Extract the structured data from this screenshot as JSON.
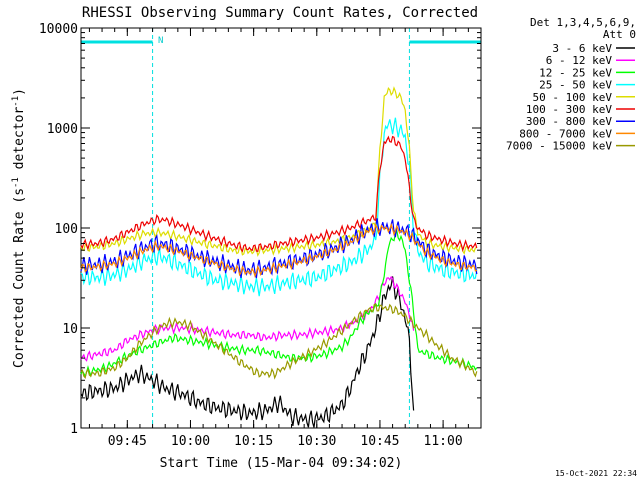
{
  "chart_data": {
    "type": "line",
    "title": "RHESSI Observing Summary Count Rates, Corrected",
    "xlabel": "Start Time (15-Mar-04 09:34:02)",
    "ylabel_main": "Corrected Count Rate (s",
    "ylabel_sup1": "-1",
    "ylabel_mid": " detector",
    "ylabel_sup2": "-1",
    "ylabel_end": ")",
    "y_scale": "log",
    "ylim": [
      1,
      10000
    ],
    "xlim_minutes": [
      0,
      95
    ],
    "x_tick_labels": [
      "09:45",
      "10:00",
      "10:15",
      "10:30",
      "10:45",
      "11:00"
    ],
    "x_tick_minutes": [
      11,
      26,
      41,
      56,
      71,
      86
    ],
    "y_tick_labels": [
      "1",
      "10",
      "100",
      "1000",
      "10000"
    ],
    "y_tick_values": [
      1,
      10,
      100,
      1000,
      10000
    ],
    "legend_header_1": "Det 1,3,4,5,6,9,",
    "legend_header_2": "Att 0",
    "legend_position": "top-right",
    "attenuator_mark": "N",
    "timestamp": "15-Oct-2021 22:34",
    "night_minutes": [
      [
        0,
        17
      ],
      [
        78,
        95
      ]
    ],
    "series": [
      {
        "name": "3 - 6 keV",
        "color": "#000000",
        "t": [
          0,
          8,
          11,
          14,
          17,
          20,
          24,
          28,
          32,
          36,
          40,
          44,
          47,
          50,
          54,
          58,
          62,
          64,
          66,
          68,
          70,
          72,
          73,
          74,
          75,
          76,
          77,
          78,
          79
        ],
        "v": [
          2.2,
          2.5,
          3.0,
          3.5,
          3.0,
          2.5,
          2.2,
          1.8,
          1.6,
          1.5,
          1.4,
          1.5,
          1.8,
          1.3,
          1.2,
          1.3,
          1.7,
          2.5,
          4,
          6,
          10,
          20,
          25,
          28,
          22,
          18,
          12,
          8,
          1.2
        ]
      },
      {
        "name": "6 - 12 keV",
        "color": "#ff00ff",
        "t": [
          0,
          8,
          11,
          14,
          17,
          20,
          24,
          28,
          32,
          36,
          40,
          44,
          48,
          52,
          56,
          60,
          62,
          64,
          66,
          68,
          70,
          72,
          73,
          74,
          75,
          76,
          77,
          78,
          79
        ],
        "v": [
          5,
          6,
          7.5,
          8.5,
          9.5,
          10,
          10,
          9.5,
          9,
          8.5,
          8.5,
          8,
          8.5,
          8.5,
          9,
          9.5,
          10,
          11,
          12,
          14,
          18,
          28,
          32,
          30,
          25,
          22,
          18,
          14,
          9
        ]
      },
      {
        "name": "12 - 25 keV",
        "color": "#00ff00",
        "t": [
          0,
          6,
          10,
          14,
          18,
          22,
          26,
          30,
          34,
          38,
          42,
          46,
          50,
          54,
          58,
          62,
          64,
          66,
          68,
          70,
          71,
          72,
          73,
          74,
          75,
          76,
          77,
          78,
          79,
          80,
          85,
          90,
          94
        ],
        "v": [
          3.5,
          4,
          5,
          6,
          7,
          8,
          7.5,
          7,
          6.5,
          6,
          6,
          5.5,
          5,
          5,
          5.5,
          6.5,
          8,
          11,
          14,
          16,
          20,
          35,
          65,
          80,
          85,
          80,
          60,
          30,
          15,
          6,
          5,
          4.5,
          4
        ]
      },
      {
        "name": "25 - 50 keV",
        "color": "#00ffff",
        "t": [
          0,
          4,
          8,
          12,
          15,
          18,
          20,
          24,
          28,
          32,
          36,
          40,
          44,
          48,
          52,
          56,
          60,
          64,
          66,
          68,
          70,
          71,
          72,
          73,
          74,
          75,
          76,
          77,
          78,
          79,
          80,
          82,
          86,
          90,
          94
        ],
        "v": [
          33,
          32,
          34,
          40,
          48,
          52,
          50,
          42,
          35,
          30,
          28,
          26,
          26,
          28,
          30,
          32,
          38,
          45,
          52,
          60,
          75,
          300,
          900,
          1100,
          1050,
          1000,
          950,
          800,
          400,
          100,
          60,
          45,
          38,
          35,
          33
        ]
      },
      {
        "name": "50 - 100 keV",
        "color": "#dddd00",
        "t": [
          0,
          4,
          8,
          12,
          15,
          18,
          20,
          24,
          28,
          32,
          36,
          40,
          44,
          48,
          52,
          56,
          60,
          64,
          66,
          68,
          70,
          71,
          72,
          73,
          74,
          75,
          76,
          77,
          78,
          79,
          80,
          82,
          86,
          90,
          94
        ],
        "v": [
          63,
          65,
          70,
          80,
          88,
          90,
          88,
          80,
          72,
          66,
          60,
          58,
          60,
          62,
          65,
          68,
          72,
          80,
          88,
          95,
          110,
          600,
          2000,
          2400,
          2300,
          2200,
          2000,
          1500,
          600,
          150,
          90,
          70,
          65,
          62,
          60
        ]
      },
      {
        "name": "100 - 300 keV",
        "color": "#ee0000",
        "t": [
          0,
          4,
          8,
          12,
          15,
          18,
          20,
          24,
          28,
          32,
          36,
          40,
          44,
          48,
          52,
          56,
          60,
          64,
          66,
          68,
          70,
          71,
          72,
          73,
          74,
          75,
          76,
          77,
          78,
          79,
          80,
          82,
          86,
          90,
          94
        ],
        "v": [
          68,
          70,
          78,
          95,
          110,
          122,
          120,
          105,
          90,
          78,
          68,
          62,
          65,
          70,
          75,
          80,
          88,
          100,
          110,
          118,
          130,
          400,
          700,
          780,
          760,
          720,
          650,
          500,
          250,
          120,
          100,
          85,
          75,
          68,
          65
        ]
      },
      {
        "name": "300 - 800 keV",
        "color": "#0000ff",
        "t": [
          0,
          4,
          8,
          12,
          15,
          18,
          20,
          24,
          28,
          32,
          36,
          40,
          44,
          48,
          52,
          56,
          60,
          64,
          66,
          68,
          70,
          72,
          74,
          76,
          78,
          80,
          82,
          86,
          90,
          94
        ],
        "v": [
          42,
          43,
          46,
          55,
          64,
          70,
          68,
          60,
          52,
          46,
          41,
          38,
          40,
          44,
          48,
          54,
          62,
          75,
          85,
          95,
          100,
          102,
          100,
          98,
          90,
          75,
          60,
          50,
          45,
          42
        ]
      },
      {
        "name": "800 - 7000 keV",
        "color": "#ff8800",
        "t": [
          0,
          4,
          8,
          12,
          15,
          18,
          20,
          24,
          28,
          32,
          36,
          40,
          44,
          48,
          52,
          56,
          60,
          64,
          66,
          68,
          70,
          72,
          74,
          76,
          78,
          80,
          82,
          86,
          90,
          94
        ],
        "v": [
          40,
          41,
          44,
          52,
          60,
          66,
          64,
          57,
          50,
          44,
          39,
          36,
          38,
          42,
          46,
          52,
          60,
          72,
          82,
          92,
          97,
          100,
          97,
          94,
          85,
          70,
          57,
          47,
          42,
          40
        ]
      },
      {
        "name": "7000 - 15000 keV",
        "color": "#999900",
        "t": [
          0,
          4,
          8,
          11,
          14,
          17,
          20,
          23,
          26,
          30,
          34,
          38,
          42,
          46,
          50,
          54,
          58,
          62,
          65,
          68,
          70,
          72,
          74,
          76,
          78,
          80,
          82,
          84,
          86,
          88,
          90,
          92,
          94
        ],
        "v": [
          3.5,
          3.5,
          4,
          5,
          7,
          9,
          11,
          11.5,
          10.5,
          8,
          6,
          4.5,
          3.5,
          3.5,
          4.5,
          5.5,
          7,
          9.5,
          12,
          15,
          16,
          16,
          15.5,
          14,
          12,
          10,
          8.5,
          7,
          6,
          5,
          4.5,
          4,
          3.5
        ]
      }
    ]
  }
}
